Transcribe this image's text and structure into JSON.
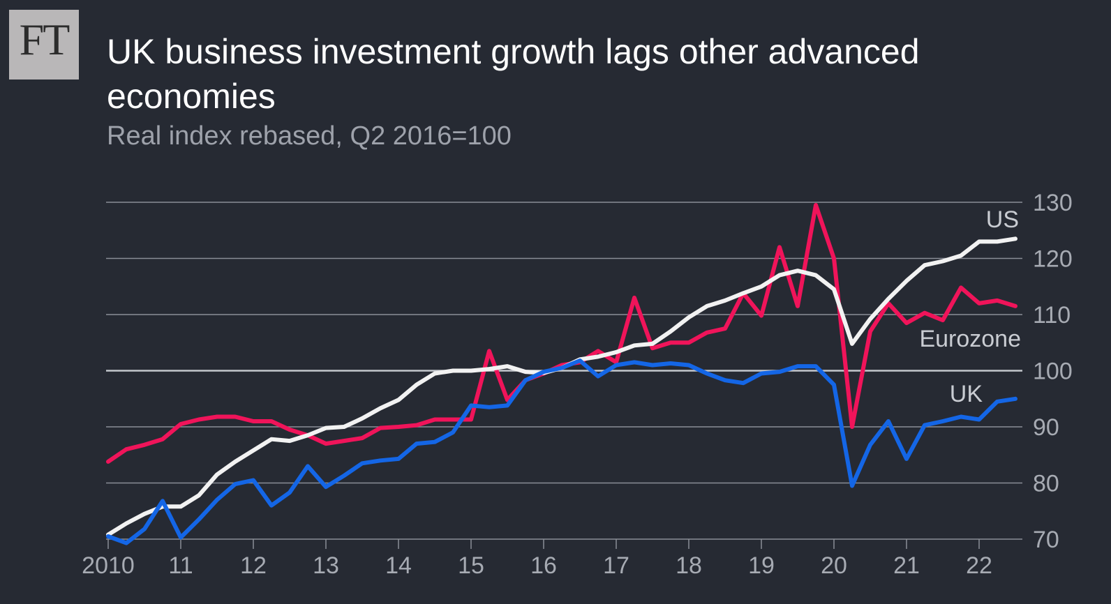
{
  "header": {
    "logo_text": "FT",
    "title": "UK business investment growth lags other advanced economies",
    "subtitle": "Real index rebased, Q2 2016=100"
  },
  "colors": {
    "background": "#262a33",
    "grid": "#8a8e97",
    "us": "#f2f2f2",
    "eurozone": "#f0145a",
    "uk": "#1466e6"
  },
  "chart_data": {
    "type": "line",
    "title": "UK business investment growth lags other advanced economies",
    "subtitle": "Real index rebased, Q2 2016=100",
    "xlabel": "",
    "ylabel": "",
    "ylim": [
      70,
      130
    ],
    "xlim": [
      2010.0,
      2022.5
    ],
    "yticks": [
      "70",
      "80",
      "90",
      "100",
      "110",
      "120",
      "130"
    ],
    "xticks": [
      {
        "value": 2010,
        "label": "2010"
      },
      {
        "value": 2011,
        "label": "11"
      },
      {
        "value": 2012,
        "label": "12"
      },
      {
        "value": 2013,
        "label": "13"
      },
      {
        "value": 2014,
        "label": "14"
      },
      {
        "value": 2015,
        "label": "15"
      },
      {
        "value": 2016,
        "label": "16"
      },
      {
        "value": 2017,
        "label": "17"
      },
      {
        "value": 2018,
        "label": "18"
      },
      {
        "value": 2019,
        "label": "19"
      },
      {
        "value": 2020,
        "label": "20"
      },
      {
        "value": 2021,
        "label": "21"
      },
      {
        "value": 2022,
        "label": "22"
      }
    ],
    "grid": true,
    "x_start": 2010.0,
    "x_step": 0.25,
    "series": [
      {
        "name": "US",
        "label": "US",
        "values": [
          70.8,
          72.8,
          74.5,
          75.8,
          75.8,
          77.8,
          81.5,
          83.8,
          85.8,
          87.8,
          87.5,
          88.5,
          89.8,
          90.0,
          91.5,
          93.3,
          94.8,
          97.5,
          99.5,
          100.0,
          100.0,
          100.3,
          100.8,
          99.8,
          99.6,
          100.5,
          102.0,
          102.5,
          103.3,
          104.5,
          104.8,
          107.0,
          109.5,
          111.5,
          112.5,
          113.8,
          115.0,
          117.0,
          117.8,
          117.0,
          114.5,
          104.8,
          109.2,
          112.8,
          116.0,
          118.8,
          119.5,
          120.5,
          123.0,
          123.0,
          123.5
        ]
      },
      {
        "name": "Eurozone",
        "label": "Eurozone",
        "values": [
          83.8,
          86.0,
          86.8,
          87.8,
          90.5,
          91.3,
          91.8,
          91.8,
          91.0,
          91.0,
          89.5,
          88.5,
          87.0,
          87.5,
          88.0,
          89.8,
          90.0,
          90.3,
          91.3,
          91.3,
          91.3,
          103.5,
          94.8,
          98.3,
          99.5,
          101.0,
          101.5,
          103.5,
          101.5,
          113.0,
          104.0,
          105.0,
          105.0,
          106.8,
          107.5,
          113.8,
          109.8,
          122.0,
          111.5,
          129.5,
          120.0,
          90.0,
          107.0,
          112.0,
          108.5,
          110.3,
          109.0,
          114.8,
          112.0,
          112.5,
          111.5
        ]
      },
      {
        "name": "UK",
        "label": "UK",
        "values": [
          70.5,
          69.3,
          71.8,
          76.8,
          70.3,
          73.5,
          77.0,
          79.8,
          80.5,
          76.0,
          78.3,
          83.0,
          79.3,
          81.3,
          83.5,
          84.0,
          84.3,
          87.0,
          87.3,
          89.0,
          93.8,
          93.5,
          93.8,
          98.3,
          99.8,
          100.5,
          101.8,
          99.0,
          101.0,
          101.5,
          101.0,
          101.3,
          101.0,
          99.5,
          98.3,
          97.8,
          99.5,
          99.8,
          100.8,
          100.8,
          97.5,
          79.5,
          86.8,
          91.0,
          84.3,
          90.3,
          91.0,
          91.8,
          91.3,
          94.5,
          95.0
        ]
      }
    ]
  }
}
